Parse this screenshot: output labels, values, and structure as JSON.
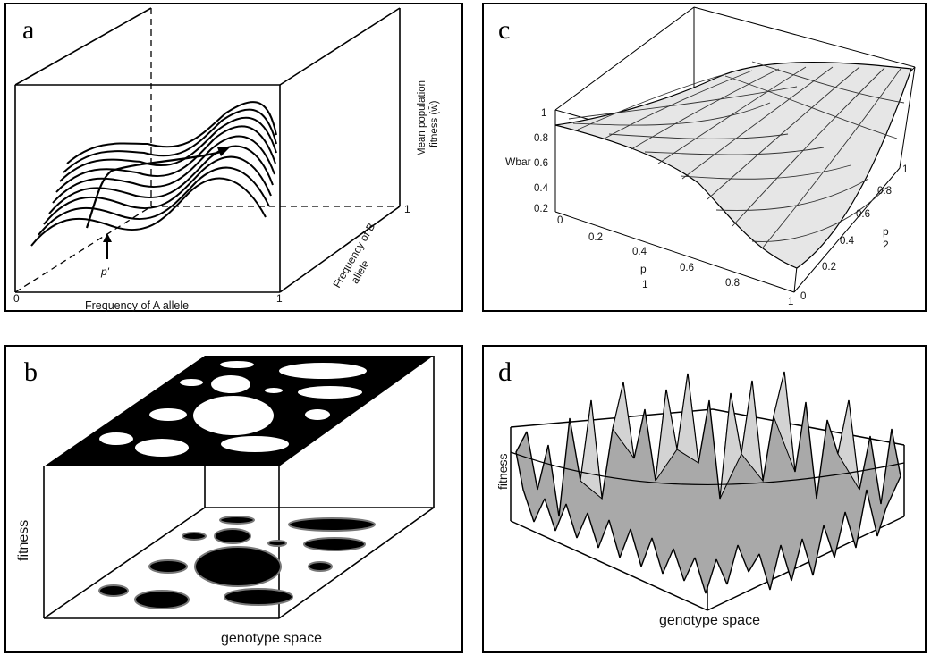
{
  "panels": {
    "a": {
      "letter": "a",
      "z_label_line1": "Mean population",
      "z_label_line2": "fitness (w̄)",
      "x_label": "Frequency of A allele",
      "y_label_line1": "Frequency of B",
      "y_label_line2": "allele",
      "origin": "0",
      "x_max": "1",
      "y_max": "1",
      "point_label": "p'"
    },
    "b": {
      "letter": "b",
      "z_label": "fitness",
      "x_label": "genotype space"
    },
    "c": {
      "letter": "c",
      "z_label": "Wbar",
      "z_ticks": [
        "1",
        "0.8",
        "0.6",
        "0.4",
        "0.2"
      ],
      "x_ticks": [
        "0",
        "0.2",
        "0.4",
        "0.6",
        "0.8",
        "1"
      ],
      "y_ticks": [
        "0",
        "0.2",
        "0.4",
        "0.6",
        "0.8",
        "1"
      ],
      "x_label_line1": "p",
      "x_label_line2": "1",
      "y_label_line1": "p",
      "y_label_line2": "2"
    },
    "d": {
      "letter": "d",
      "z_label": "fitness",
      "x_label": "genotype space"
    }
  }
}
